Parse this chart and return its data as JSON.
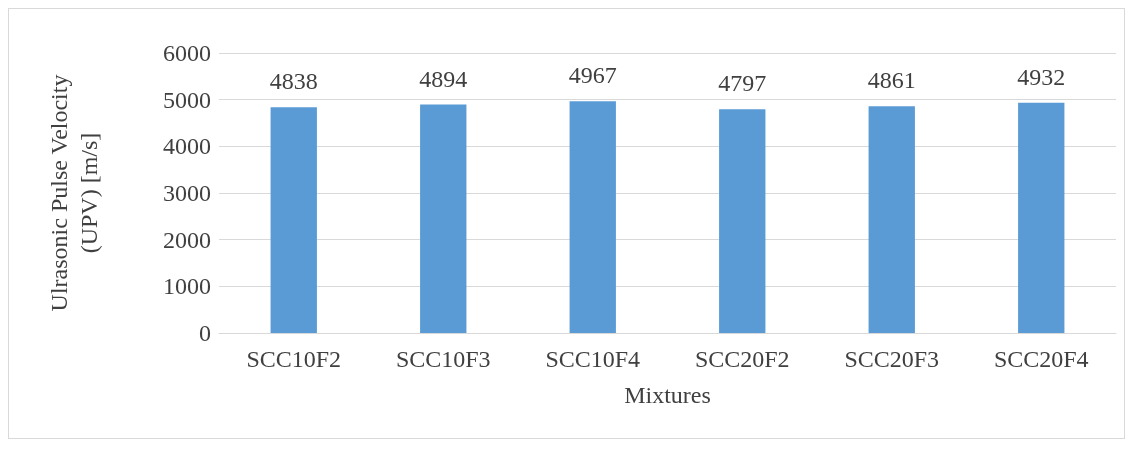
{
  "chart_data": {
    "type": "bar",
    "xlabel": "Mixtures",
    "ylabel": "Ulrasonic Pulse Velocity (UPV) [m/s]",
    "categories": [
      "SCC10F2",
      "SCC10F3",
      "SCC10F4",
      "SCC20F2",
      "SCC20F3",
      "SCC20F4"
    ],
    "values": [
      4838,
      4894,
      4967,
      4797,
      4861,
      4932
    ],
    "color": "#5b9bd5",
    "ylim": [
      0,
      6000
    ],
    "yticks": [
      0,
      1000,
      2000,
      3000,
      4000,
      5000,
      6000
    ],
    "grid": "y",
    "data_labels": true
  }
}
